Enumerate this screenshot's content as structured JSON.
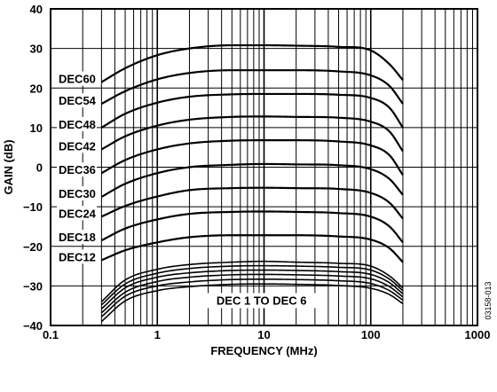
{
  "chart_data": {
    "type": "line",
    "title": "",
    "xlabel": "FREQUENCY (MHz)",
    "ylabel": "GAIN (dB)",
    "x_scale": "log",
    "xlim": [
      0.1,
      1000
    ],
    "ylim": [
      -40,
      40
    ],
    "grid": true,
    "x_tick_labels": [
      "0.1",
      "1",
      "10",
      "100",
      "1000"
    ],
    "y_tick_labels": [
      "40",
      "30",
      "20",
      "10",
      "0",
      "−10",
      "−20",
      "−30",
      "−40"
    ],
    "group_label": "DEC 1 TO DEC 6",
    "figure_id": "03158-013",
    "x": [
      0.3,
      0.5,
      1,
      2,
      5,
      10,
      20,
      50,
      100,
      150,
      200
    ],
    "series": [
      {
        "name": "DEC60",
        "values": [
          21.5,
          25.0,
          28.3,
          30.0,
          30.8,
          30.8,
          30.7,
          30.4,
          29.5,
          26.0,
          22.0
        ]
      },
      {
        "name": "DEC54",
        "values": [
          16.0,
          19.2,
          22.2,
          23.8,
          24.5,
          24.5,
          24.5,
          24.2,
          23.2,
          20.5,
          16.0
        ]
      },
      {
        "name": "DEC48",
        "values": [
          10.0,
          13.5,
          16.3,
          17.8,
          18.4,
          18.5,
          18.5,
          18.3,
          17.5,
          15.0,
          10.0
        ]
      },
      {
        "name": "DEC42",
        "values": [
          4.5,
          7.8,
          10.5,
          12.0,
          12.7,
          12.8,
          12.7,
          12.5,
          11.5,
          9.0,
          4.0
        ]
      },
      {
        "name": "DEC36",
        "values": [
          -1.5,
          1.8,
          4.5,
          6.0,
          6.7,
          6.8,
          6.8,
          6.5,
          5.5,
          3.0,
          -2.0
        ]
      },
      {
        "name": "DEC30",
        "values": [
          -7.5,
          -4.2,
          -1.5,
          0.0,
          0.6,
          0.8,
          0.7,
          0.5,
          -0.5,
          -3.0,
          -7.0
        ]
      },
      {
        "name": "DEC24",
        "values": [
          -12.5,
          -9.8,
          -7.4,
          -5.8,
          -5.3,
          -5.2,
          -5.3,
          -5.5,
          -6.5,
          -9.0,
          -13.0
        ]
      },
      {
        "name": "DEC18",
        "values": [
          -18.5,
          -15.5,
          -13.2,
          -11.8,
          -11.3,
          -11.2,
          -11.3,
          -11.6,
          -12.5,
          -15.0,
          -19.0
        ]
      },
      {
        "name": "DEC12",
        "values": [
          -23.5,
          -21.0,
          -19.0,
          -17.7,
          -17.2,
          -17.2,
          -17.2,
          -17.5,
          -18.3,
          -20.5,
          -24.0
        ]
      },
      {
        "name": "DEC 6",
        "values": [
          -34.0,
          -28.5,
          -25.8,
          -24.6,
          -24.0,
          -23.8,
          -24.0,
          -24.3,
          -25.0,
          -27.5,
          -30.5
        ]
      },
      {
        "name": "DEC 5",
        "values": [
          -34.8,
          -29.5,
          -26.8,
          -25.6,
          -25.0,
          -24.9,
          -25.0,
          -25.3,
          -26.0,
          -28.3,
          -31.2
        ]
      },
      {
        "name": "DEC 4",
        "values": [
          -35.8,
          -30.5,
          -27.8,
          -26.7,
          -26.1,
          -26.0,
          -26.1,
          -26.4,
          -27.1,
          -29.2,
          -32.0
        ]
      },
      {
        "name": "DEC 3",
        "values": [
          -36.8,
          -31.6,
          -28.9,
          -27.8,
          -27.2,
          -27.1,
          -27.2,
          -27.5,
          -28.2,
          -30.2,
          -32.8
        ]
      },
      {
        "name": "DEC 2",
        "values": [
          -37.8,
          -32.6,
          -30.0,
          -29.0,
          -28.4,
          -28.3,
          -28.4,
          -28.7,
          -29.4,
          -31.2,
          -33.6
        ]
      },
      {
        "name": "DEC 1",
        "values": [
          -39.0,
          -33.8,
          -31.2,
          -30.2,
          -29.6,
          -29.5,
          -29.6,
          -29.9,
          -30.6,
          -32.2,
          -34.5
        ]
      }
    ],
    "curve_labels": [
      "DEC60",
      "DEC54",
      "DEC48",
      "DEC42",
      "DEC36",
      "DEC30",
      "DEC24",
      "DEC18",
      "DEC12"
    ]
  }
}
